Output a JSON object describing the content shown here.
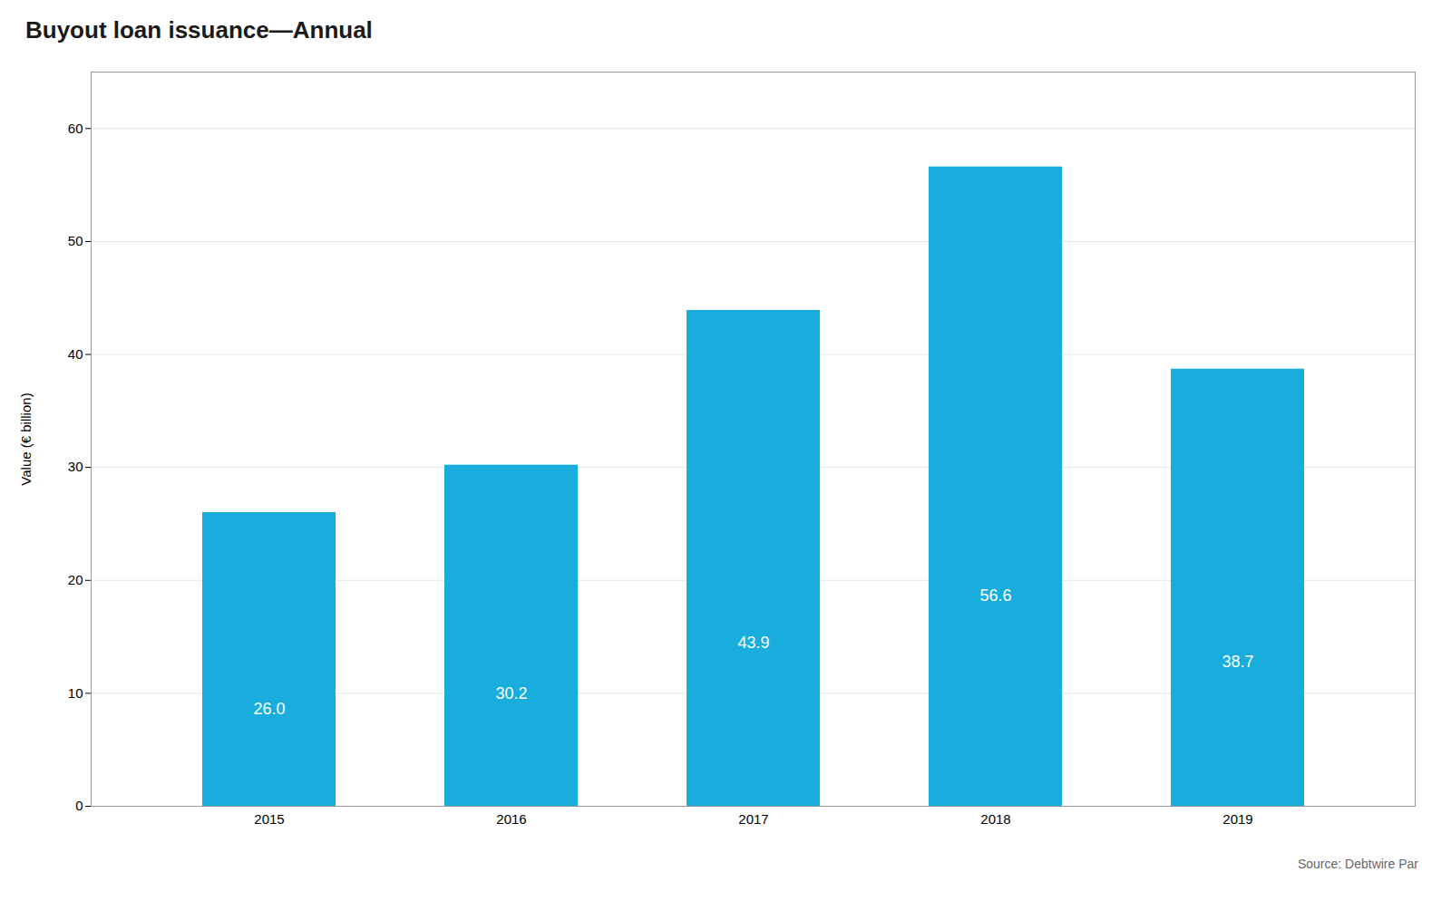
{
  "chart_data": {
    "type": "bar",
    "title": "Buyout loan issuance—Annual",
    "categories": [
      "2015",
      "2016",
      "2017",
      "2018",
      "2019"
    ],
    "values": [
      26.0,
      30.2,
      43.9,
      56.6,
      38.7
    ],
    "value_labels": [
      "26.0",
      "30.2",
      "43.9",
      "56.6",
      "38.7"
    ],
    "color": "#19ADDE",
    "ylabel": "Value (€ billion)",
    "ylim": [
      0,
      65
    ],
    "yticks": [
      0,
      10,
      20,
      30,
      40,
      50,
      60
    ],
    "grid": true,
    "data_labels": true,
    "caption": "Source: Debtwire Par"
  }
}
